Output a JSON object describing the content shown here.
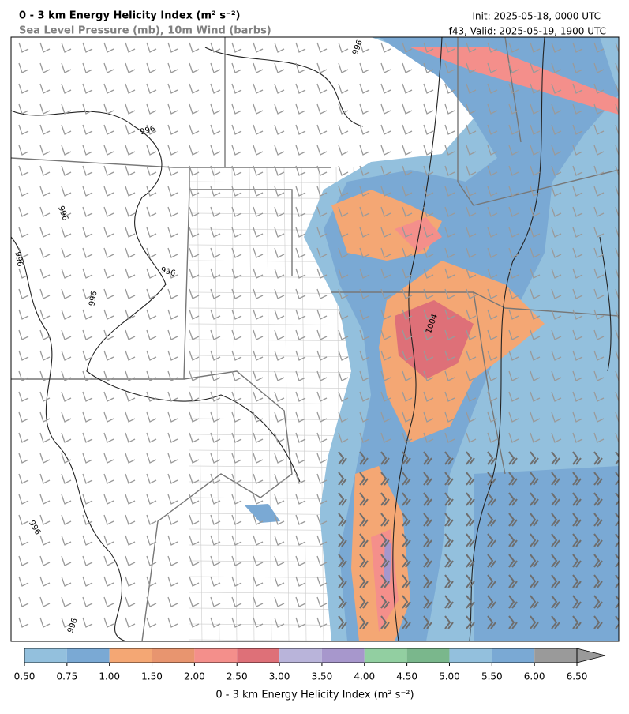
{
  "header": {
    "title": "0 - 3 km Energy Helicity Index (m² s⁻²)",
    "subtitle": "Sea Level Pressure (mb), 10m Wind (barbs)",
    "init": "Init: 2025-05-18, 0000 UTC",
    "valid": "f43, Valid: 2025-05-19, 1900 UTC"
  },
  "map": {
    "contour_labels": [
      "996",
      "996",
      "996",
      "996",
      "996",
      "996",
      "996",
      "996",
      "1004"
    ]
  },
  "colorbar": {
    "label": "0 - 3 km Energy Helicity Index (m² s⁻²)",
    "ticks": [
      {
        "value": 0.5,
        "label": "0.50"
      },
      {
        "value": 0.75,
        "label": "0.75"
      },
      {
        "value": 1,
        "label": "1.00"
      },
      {
        "value": 1.5,
        "label": "1.50"
      },
      {
        "value": 2,
        "label": "2.00"
      },
      {
        "value": 2.5,
        "label": "2.50"
      },
      {
        "value": 3,
        "label": "3.00"
      },
      {
        "value": 3.5,
        "label": "3.50"
      },
      {
        "value": 4,
        "label": "4.00"
      },
      {
        "value": 4.5,
        "label": "4.50"
      },
      {
        "value": 5,
        "label": "5.00"
      },
      {
        "value": 5.5,
        "label": "5.50"
      },
      {
        "value": 6,
        "label": "6.00"
      },
      {
        "value": 6.5,
        "label": "6.50"
      }
    ],
    "colors": [
      "#93c0dd",
      "#7aa9d4",
      "#f4a774",
      "#e8956f",
      "#f48f8b",
      "#de7078",
      "#b9b4da",
      "#a797cc",
      "#92cfa1",
      "#7ab78c",
      "#93c0dd",
      "#7aa9d4",
      "#9a9a9a"
    ],
    "extend_color": "#9a9a9a"
  }
}
